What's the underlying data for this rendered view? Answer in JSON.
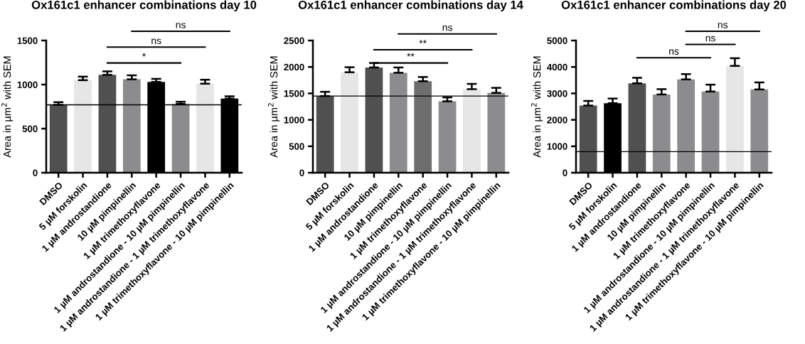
{
  "chart_data": [
    {
      "type": "bar",
      "title": "Ox161c1 enhancer combinations day 10",
      "ylabel": "Area in µm$^{2}$ with SEM",
      "categories": [
        "DMSO",
        "5 µM forskolin",
        "1 µM androstandione",
        "10 µM pimpinellin",
        "1 µM trimethoxyflavone",
        "1 µM androstandione - 10 µM pimpinellin",
        "1 µM androstandione - 1 µM trimethoxyflavone",
        "1 µM trimethoxyflavone - 10 µM pimpinellin"
      ],
      "values": [
        770,
        1050,
        1110,
        1060,
        1030,
        780,
        1010,
        840
      ],
      "errors": [
        30,
        40,
        40,
        45,
        35,
        25,
        45,
        27
      ],
      "colors": [
        "#505050",
        "#e6e6e6",
        "#505050",
        "#8c8c8e",
        "#000000",
        "#8c8c8e",
        "#e6e6e6",
        "#000000"
      ],
      "ylim": [
        0,
        1500
      ],
      "yticks": [
        0,
        500,
        1000,
        1500
      ],
      "grid": false,
      "ref_lines": [
        {
          "axis": "y",
          "value": 770,
          "color": "#000000"
        }
      ],
      "annotations": [
        "*",
        "ns",
        "ns"
      ]
    },
    {
      "type": "bar",
      "title": "Ox161c1 enhancer combinations day 14",
      "ylabel": "Area in µm$^{2}$ with SEM",
      "categories": [
        "DMSO",
        "5 µM forskolin",
        "1 µM androstandione",
        "10 µM pimpinellin",
        "1 µM trimethoxyflavone",
        "1 µM androstandione - 10 µM pimpinellin",
        "1 µM androstandione - 1 µM trimethoxyflavone",
        "1 µM trimethoxyflavone - 10 µM pimpinellin"
      ],
      "values": [
        1450,
        1900,
        1990,
        1890,
        1730,
        1350,
        1580,
        1510
      ],
      "errors": [
        80,
        95,
        85,
        100,
        80,
        75,
        100,
        95
      ],
      "colors": [
        "#505050",
        "#e6e6e6",
        "#505050",
        "#8c8c8e",
        "#6e6e6e",
        "#8c8c8e",
        "#e6e6e6",
        "#8c8c8e"
      ],
      "ylim": [
        0,
        2500
      ],
      "yticks": [
        0,
        500,
        1000,
        1500,
        2000,
        2500
      ],
      "grid": false,
      "ref_lines": [
        {
          "axis": "y",
          "value": 1450,
          "color": "#000000"
        }
      ],
      "annotations": [
        "**",
        "**",
        "ns"
      ]
    },
    {
      "type": "bar",
      "title": "Ox161c1 enhancer combinations day 20",
      "ylabel": "Area in µm$^{2}$ with SEM",
      "categories": [
        "DMSO",
        "5 µM forskolin",
        "1 µM androstandione",
        "10 µM pimpinellin",
        "1 µM trimethoxyflavone",
        "1 µM androstandione - 10 µM pimpinellin",
        "1 µM androstandione - 1 µM trimethoxyflavone",
        "1 µM trimethoxyflavone - 10 µM pimpinellin"
      ],
      "values": [
        2540,
        2630,
        3380,
        2960,
        3530,
        3070,
        4040,
        3150
      ],
      "errors": [
        175,
        175,
        210,
        200,
        200,
        260,
        290,
        265
      ],
      "colors": [
        "#505050",
        "#000000",
        "#505050",
        "#8c8c8e",
        "#8c8c8e",
        "#8c8c8e",
        "#e6e6e6",
        "#8c8c8e"
      ],
      "ylim": [
        0,
        5000
      ],
      "yticks": [
        0,
        1000,
        2000,
        3000,
        4000,
        5000
      ],
      "grid": false,
      "ref_lines": [
        {
          "axis": "y",
          "value": 795,
          "color": "#000000"
        }
      ],
      "annotations": [
        "ns",
        "ns",
        "ns"
      ]
    }
  ]
}
